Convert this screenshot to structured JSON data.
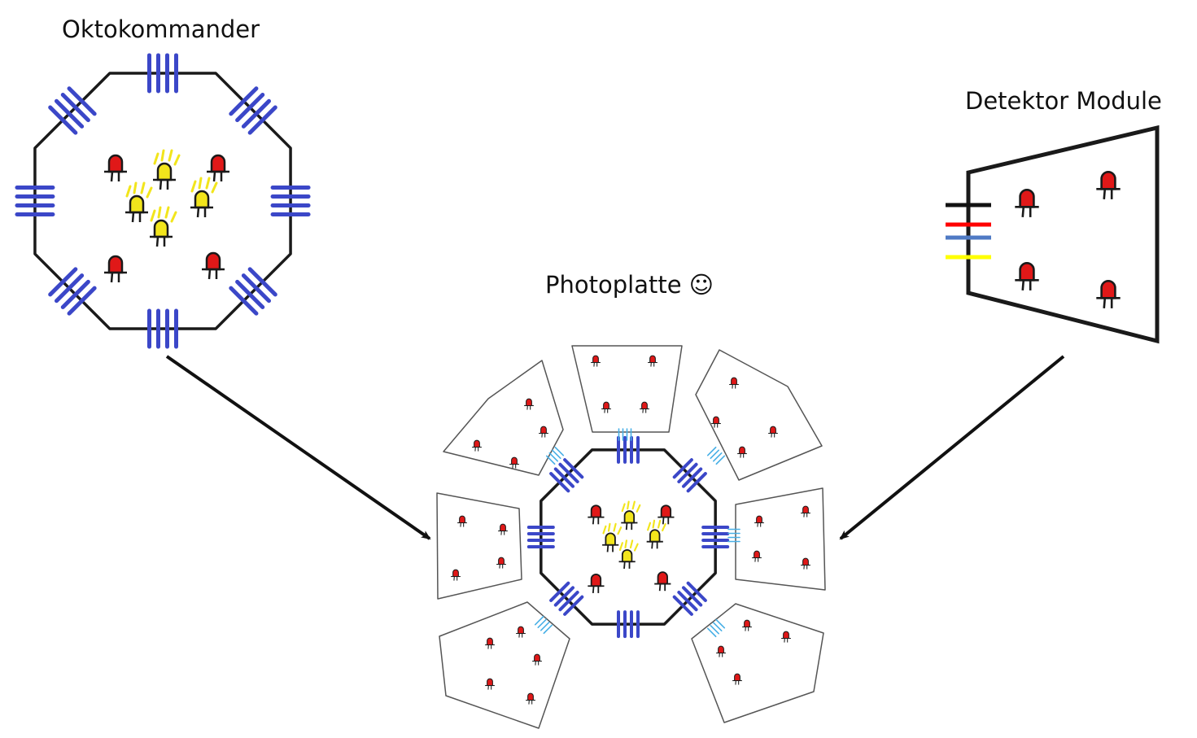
{
  "labels": {
    "oktokommander": "Oktokommander",
    "detektor_module": "Detektor Module",
    "photoplatte": "Photoplatte ☺"
  },
  "colors": {
    "outline": "#1a1a1a",
    "connector_blue": "#3b47c8",
    "connector_light_blue": "#49b0e6",
    "led_red": "#e01818",
    "led_yellow": "#f2e51c",
    "module_outline": "#555555",
    "cable_black": "#111111",
    "cable_red": "#ff0000",
    "cable_blue": "#4f7ac4",
    "cable_yellow": "#ffff00"
  },
  "icons": [
    "red-led-icon",
    "yellow-led-icon",
    "connector-pins-icon",
    "arrow-icon",
    "smiley-icon"
  ]
}
